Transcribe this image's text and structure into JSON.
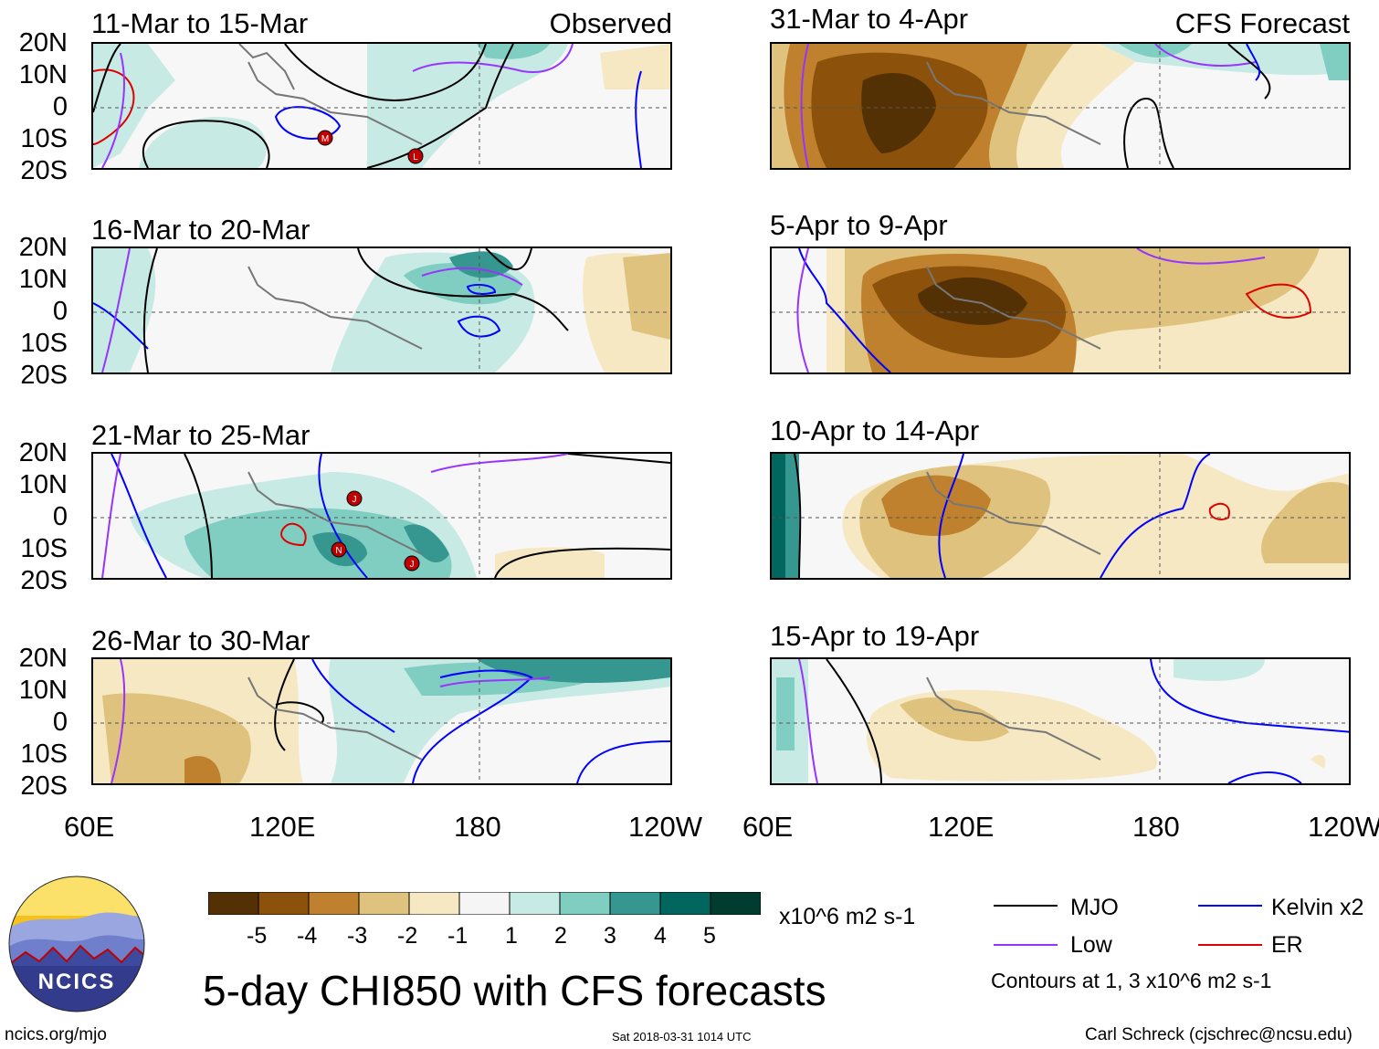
{
  "header": {
    "left_label": "Observed",
    "right_label": "CFS Forecast"
  },
  "panels": {
    "left": [
      {
        "title": "11-Mar to 15-Mar"
      },
      {
        "title": "16-Mar to 20-Mar"
      },
      {
        "title": "21-Mar to 25-Mar"
      },
      {
        "title": "26-Mar to 30-Mar"
      }
    ],
    "right": [
      {
        "title": "31-Mar to 4-Apr"
      },
      {
        "title": "5-Apr to 9-Apr"
      },
      {
        "title": "10-Apr to 14-Apr"
      },
      {
        "title": "15-Apr to 19-Apr"
      }
    ]
  },
  "axes": {
    "y_ticks": [
      "20N",
      "10N",
      "0",
      "10S",
      "20S"
    ],
    "x_ticks": [
      "60E",
      "120E",
      "180",
      "120W"
    ]
  },
  "colorbar": {
    "labels": [
      "-5",
      "-4",
      "-3",
      "-2",
      "-1",
      "1",
      "2",
      "3",
      "4",
      "5"
    ],
    "unit": "x10^6 m2 s-1",
    "colors": [
      "#543005",
      "#8c510a",
      "#bf812d",
      "#dfc27d",
      "#f6e8c3",
      "#f5f5f5",
      "#c7eae5",
      "#80cdc1",
      "#35978f",
      "#01665e",
      "#003c30"
    ]
  },
  "legend": {
    "mjo": "MJO",
    "kelvin": "Kelvin x2",
    "low": "Low",
    "er": "ER",
    "contours_note": "Contours at 1, 3 x10^6 m2 s-1",
    "colors": {
      "mjo": "#000000",
      "kelvin": "#0000ff",
      "low": "#9933ff",
      "er": "#e00000"
    }
  },
  "title": "5-day CHI850 with CFS forecasts",
  "logo": {
    "text": "NCICS"
  },
  "footer": {
    "url": "ncics.org/mjo",
    "timestamp": "Sat 2018-03-31 1014 UTC",
    "credit": "Carl Schreck (cjschrec@ncsu.edu)"
  },
  "storm_markers": [
    {
      "panel": "11-Mar to 15-Mar",
      "letter": "M"
    },
    {
      "panel": "11-Mar to 15-Mar",
      "letter": "L"
    },
    {
      "panel": "21-Mar to 25-Mar",
      "letter": "J"
    },
    {
      "panel": "21-Mar to 25-Mar",
      "letter": "N"
    },
    {
      "panel": "21-Mar to 25-Mar",
      "letter": "J"
    }
  ]
}
